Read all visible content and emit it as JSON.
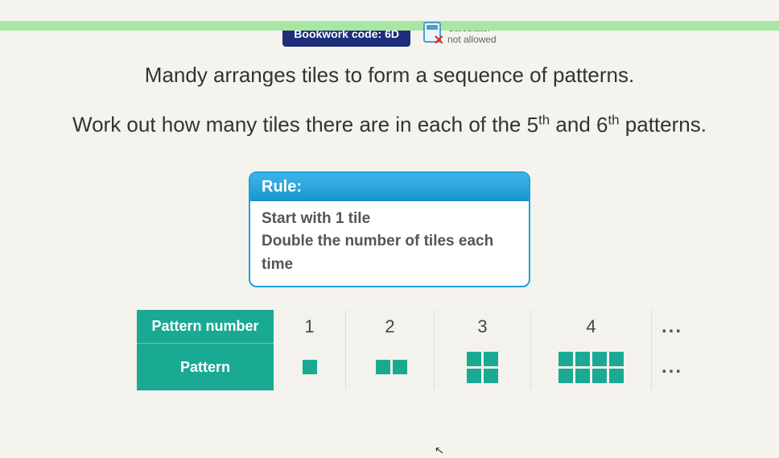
{
  "colors": {
    "background": "#f5f3ed",
    "green_bar": "#a8e6a3",
    "badge_bg": "#1e2e7a",
    "rule_border": "#1fa0d8",
    "rule_head_top": "#3cb6e8",
    "rule_head_bottom": "#1a94d0",
    "teal": "#1aa993",
    "text": "#333333",
    "calc_border": "#4aa0c8",
    "calc_x": "#d62f2f"
  },
  "header": {
    "bookwork_label": "Bookwork code: 6D",
    "calculator_line1": "Calculator",
    "calculator_line2": "not allowed"
  },
  "question": {
    "line1": "Mandy arranges tiles to form a sequence of patterns.",
    "line2_pre": "Work out how many tiles there are in each of the ",
    "ord1_num": "5",
    "ord1_suffix": "th",
    "mid": " and ",
    "ord2_num": "6",
    "ord2_suffix": "th",
    "line2_post": " patterns."
  },
  "rule": {
    "title": "Rule:",
    "line1": "Start with 1 tile",
    "line2": "Double the number of tiles each time"
  },
  "table": {
    "row1_label": "Pattern number",
    "row2_label": "Pattern",
    "columns": [
      {
        "number": "1",
        "tiles": 1,
        "grid": "1x1"
      },
      {
        "number": "2",
        "tiles": 2,
        "grid": "2x1"
      },
      {
        "number": "3",
        "tiles": 4,
        "grid": "2x2"
      },
      {
        "number": "4",
        "tiles": 8,
        "grid": "4x2"
      }
    ],
    "ellipsis": "..."
  }
}
